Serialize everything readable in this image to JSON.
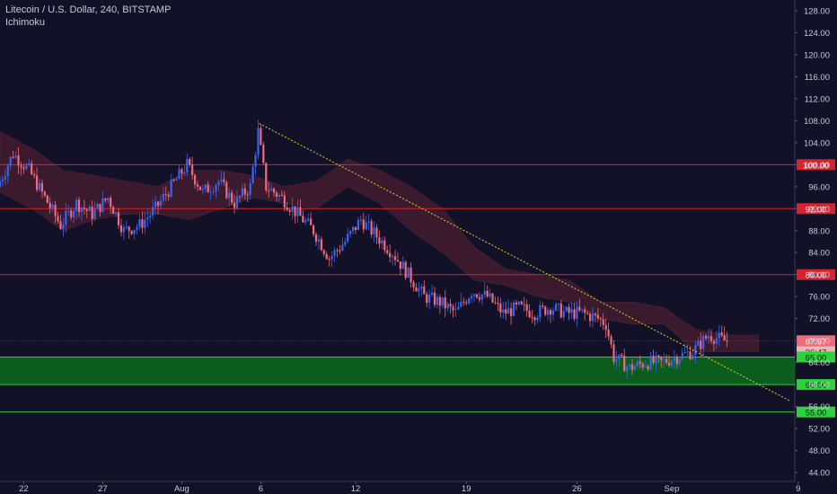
{
  "header": {
    "symbol_line": "Litecoin / U.S. Dollar, 240, BITSTAMP",
    "indicator": "Ichimoku"
  },
  "colors": {
    "background": "#131128",
    "up_candle": "#3a63ee",
    "down_candle": "#f06a78",
    "resistance_line": "#d5232f",
    "support_line": "#2bd23c",
    "support_zone": "#0b6b1c",
    "trendline": "#d8d629",
    "cloud_bearish": "#5a2230",
    "cloud_bullish": "#18423a",
    "axis_text": "#c7c9d6"
  },
  "chart_data": {
    "type": "candlestick",
    "title": "Litecoin / U.S. Dollar, 240, BITSTAMP",
    "indicator": "Ichimoku",
    "y_range": [
      43,
      130
    ],
    "y_ticks": [
      "128.00",
      "124.00",
      "120.00",
      "116.00",
      "112.00",
      "108.00",
      "104.00",
      "100.00",
      "96.00",
      "92.00",
      "88.00",
      "84.00",
      "80.00",
      "76.00",
      "72.00",
      "68.00",
      "64.00",
      "60.00",
      "56.00",
      "52.00",
      "48.00",
      "44.00"
    ],
    "x_range_days": [
      0,
      50
    ],
    "x_ticks": [
      {
        "label": "22",
        "day": 1.5
      },
      {
        "label": "27",
        "day": 6.5
      },
      {
        "label": "Aug",
        "day": 11.5
      },
      {
        "label": "6",
        "day": 16.5
      },
      {
        "label": "12",
        "day": 22.5
      },
      {
        "label": "19",
        "day": 29.5
      },
      {
        "label": "26",
        "day": 36.5
      },
      {
        "label": "Sep",
        "day": 42.5
      },
      {
        "label": "9",
        "day": 50.5
      }
    ],
    "horizontal_levels": [
      {
        "label": "100.00",
        "value": 100,
        "kind": "resistance"
      },
      {
        "label": "92.00",
        "value": 92,
        "kind": "resistance"
      },
      {
        "label": "80.00",
        "value": 80,
        "kind": "resistance"
      },
      {
        "label": "60.00",
        "value": 60,
        "kind": "support"
      },
      {
        "label": "55.00",
        "value": 55,
        "kind": "support"
      }
    ],
    "support_zone": {
      "label": "65.00",
      "from": 60,
      "to": 65
    },
    "last_price": {
      "label": "67.97",
      "value": 67.97,
      "countdown": "36:47"
    },
    "trendline": {
      "start": {
        "day": 16.4,
        "price": 107.5
      },
      "end": {
        "day": 50,
        "price": 57
      }
    },
    "price_path": [
      {
        "day": 0,
        "price": 96
      },
      {
        "day": 1,
        "price": 102
      },
      {
        "day": 2,
        "price": 99
      },
      {
        "day": 3,
        "price": 94
      },
      {
        "day": 4,
        "price": 89
      },
      {
        "day": 5,
        "price": 93
      },
      {
        "day": 6,
        "price": 91
      },
      {
        "day": 7,
        "price": 94
      },
      {
        "day": 8,
        "price": 88
      },
      {
        "day": 9,
        "price": 89
      },
      {
        "day": 10,
        "price": 92
      },
      {
        "day": 11,
        "price": 96
      },
      {
        "day": 12,
        "price": 100
      },
      {
        "day": 13,
        "price": 95
      },
      {
        "day": 14,
        "price": 97
      },
      {
        "day": 15,
        "price": 93
      },
      {
        "day": 16,
        "price": 96
      },
      {
        "day": 16.5,
        "price": 106
      },
      {
        "day": 17,
        "price": 96
      },
      {
        "day": 18,
        "price": 94
      },
      {
        "day": 19,
        "price": 91
      },
      {
        "day": 20,
        "price": 88
      },
      {
        "day": 21,
        "price": 83
      },
      {
        "day": 22,
        "price": 86
      },
      {
        "day": 23,
        "price": 90
      },
      {
        "day": 24,
        "price": 87
      },
      {
        "day": 25,
        "price": 84
      },
      {
        "day": 26,
        "price": 80
      },
      {
        "day": 27,
        "price": 76
      },
      {
        "day": 28,
        "price": 75
      },
      {
        "day": 29,
        "price": 73
      },
      {
        "day": 30,
        "price": 77
      },
      {
        "day": 31,
        "price": 76
      },
      {
        "day": 32,
        "price": 73
      },
      {
        "day": 33,
        "price": 74
      },
      {
        "day": 34,
        "price": 73
      },
      {
        "day": 35,
        "price": 74
      },
      {
        "day": 36,
        "price": 73
      },
      {
        "day": 37,
        "price": 73
      },
      {
        "day": 38,
        "price": 72
      },
      {
        "day": 38.5,
        "price": 71
      },
      {
        "day": 39,
        "price": 65
      },
      {
        "day": 40,
        "price": 63
      },
      {
        "day": 41,
        "price": 64
      },
      {
        "day": 42,
        "price": 64
      },
      {
        "day": 43,
        "price": 65
      },
      {
        "day": 44,
        "price": 66
      },
      {
        "day": 45,
        "price": 69
      },
      {
        "day": 46,
        "price": 68
      }
    ],
    "cloud_path": [
      {
        "day": 0,
        "upper": 106,
        "lower": 95
      },
      {
        "day": 2,
        "upper": 103,
        "lower": 92
      },
      {
        "day": 4,
        "upper": 99,
        "lower": 88
      },
      {
        "day": 6,
        "upper": 98,
        "lower": 90
      },
      {
        "day": 8,
        "upper": 97,
        "lower": 91
      },
      {
        "day": 10,
        "upper": 96,
        "lower": 91
      },
      {
        "day": 12,
        "upper": 99,
        "lower": 90
      },
      {
        "day": 14,
        "upper": 99,
        "lower": 92
      },
      {
        "day": 16,
        "upper": 98,
        "lower": 94
      },
      {
        "day": 18,
        "upper": 96,
        "lower": 93
      },
      {
        "day": 20,
        "upper": 97,
        "lower": 92
      },
      {
        "day": 22,
        "upper": 101,
        "lower": 96
      },
      {
        "day": 24,
        "upper": 99,
        "lower": 93
      },
      {
        "day": 26,
        "upper": 96,
        "lower": 88
      },
      {
        "day": 28,
        "upper": 92,
        "lower": 84
      },
      {
        "day": 30,
        "upper": 85,
        "lower": 79
      },
      {
        "day": 32,
        "upper": 81,
        "lower": 78
      },
      {
        "day": 34,
        "upper": 80,
        "lower": 76
      },
      {
        "day": 36,
        "upper": 79,
        "lower": 75
      },
      {
        "day": 38,
        "upper": 75,
        "lower": 72
      },
      {
        "day": 40,
        "upper": 75,
        "lower": 71
      },
      {
        "day": 42,
        "upper": 74,
        "lower": 71
      },
      {
        "day": 44,
        "upper": 70,
        "lower": 66
      },
      {
        "day": 46,
        "upper": 69,
        "lower": 66
      },
      {
        "day": 48,
        "upper": 69,
        "lower": 66
      }
    ]
  }
}
